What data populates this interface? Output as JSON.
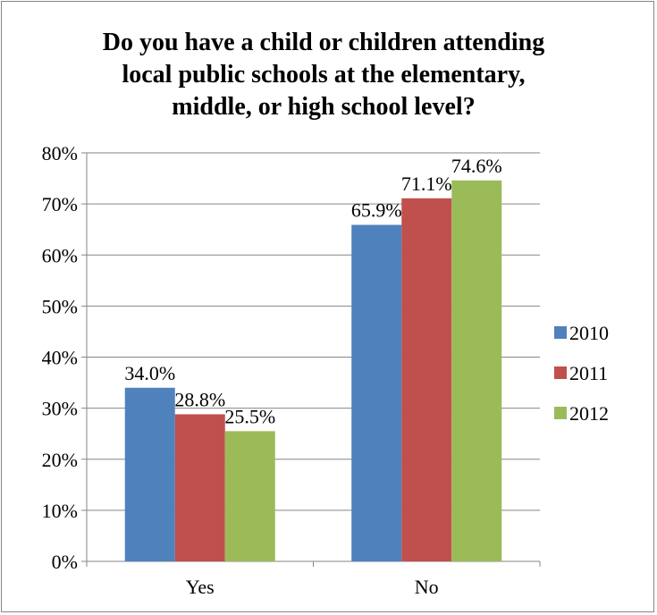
{
  "chart_data": {
    "type": "bar",
    "title_lines": [
      "Do you have a child or children attending",
      "local public schools at the elementary,",
      "middle, or high school level?"
    ],
    "categories": [
      "Yes",
      "No"
    ],
    "series": [
      {
        "name": "2010",
        "values": [
          34.0,
          65.9
        ],
        "labels": [
          "34.0%",
          "65.9%"
        ],
        "color": "#4F81BD"
      },
      {
        "name": "2011",
        "values": [
          28.8,
          71.1
        ],
        "labels": [
          "28.8%",
          "71.1%"
        ],
        "color": "#C0504D"
      },
      {
        "name": "2012",
        "values": [
          25.5,
          74.6
        ],
        "labels": [
          "25.5%",
          "74.6%"
        ],
        "color": "#9BBB59"
      }
    ],
    "ylim": [
      0,
      80
    ],
    "yticks": [
      "0%",
      "10%",
      "20%",
      "30%",
      "40%",
      "50%",
      "60%",
      "70%",
      "80%"
    ],
    "grid": true,
    "legend_position": "right",
    "gridline_color": "#868686"
  }
}
